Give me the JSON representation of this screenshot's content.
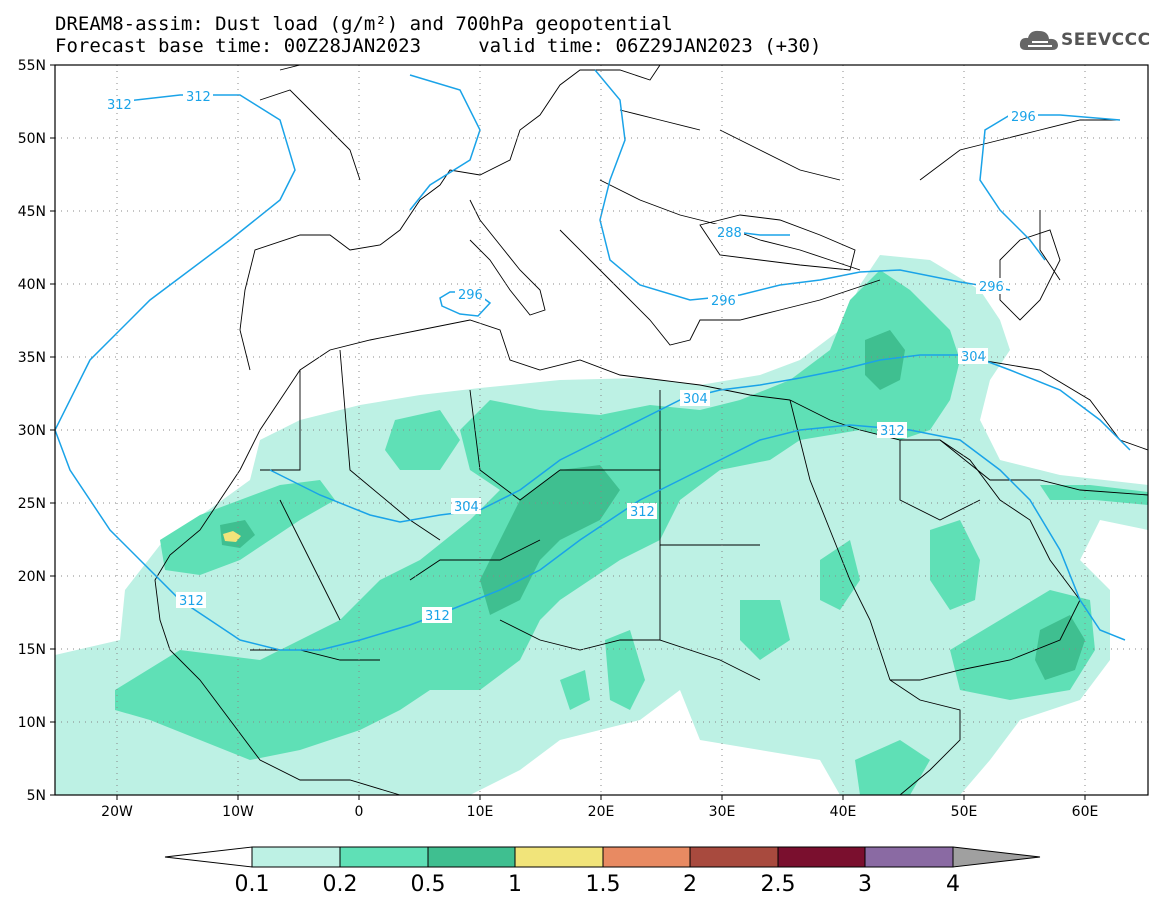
{
  "header": {
    "title_line": "DREAM8-assim: Dust load (g/m²) and 700hPa geopotential",
    "forecast_line": "Forecast base time: 00Z28JAN2023     valid time: 06Z29JAN2023 (+30)"
  },
  "logo": {
    "text": "SEEVCCC",
    "icon": "cloud-logo-icon"
  },
  "map": {
    "lat_labels": [
      "55N",
      "50N",
      "45N",
      "40N",
      "35N",
      "30N",
      "25N",
      "20N",
      "15N",
      "10N",
      "5N"
    ],
    "lon_labels": [
      "20W",
      "10W",
      "0",
      "10E",
      "20E",
      "30E",
      "40E",
      "50E",
      "60E"
    ],
    "contour_color": "#1aa3e8",
    "contour_labels": [
      "312",
      "312",
      "296",
      "288",
      "296",
      "296",
      "304",
      "304",
      "312",
      "304",
      "312",
      "312",
      "312"
    ]
  },
  "colorbar": {
    "ticks": [
      "0.1",
      "0.2",
      "0.5",
      "1",
      "1.5",
      "2",
      "2.5",
      "3",
      "4"
    ],
    "colors": [
      "#ffffff",
      "#bdf1e4",
      "#5fe0b6",
      "#3fbf90",
      "#f1e47a",
      "#e88a62",
      "#a84a3e",
      "#7a0f2e",
      "#8a6aa3",
      "#a0a0a0"
    ]
  }
}
